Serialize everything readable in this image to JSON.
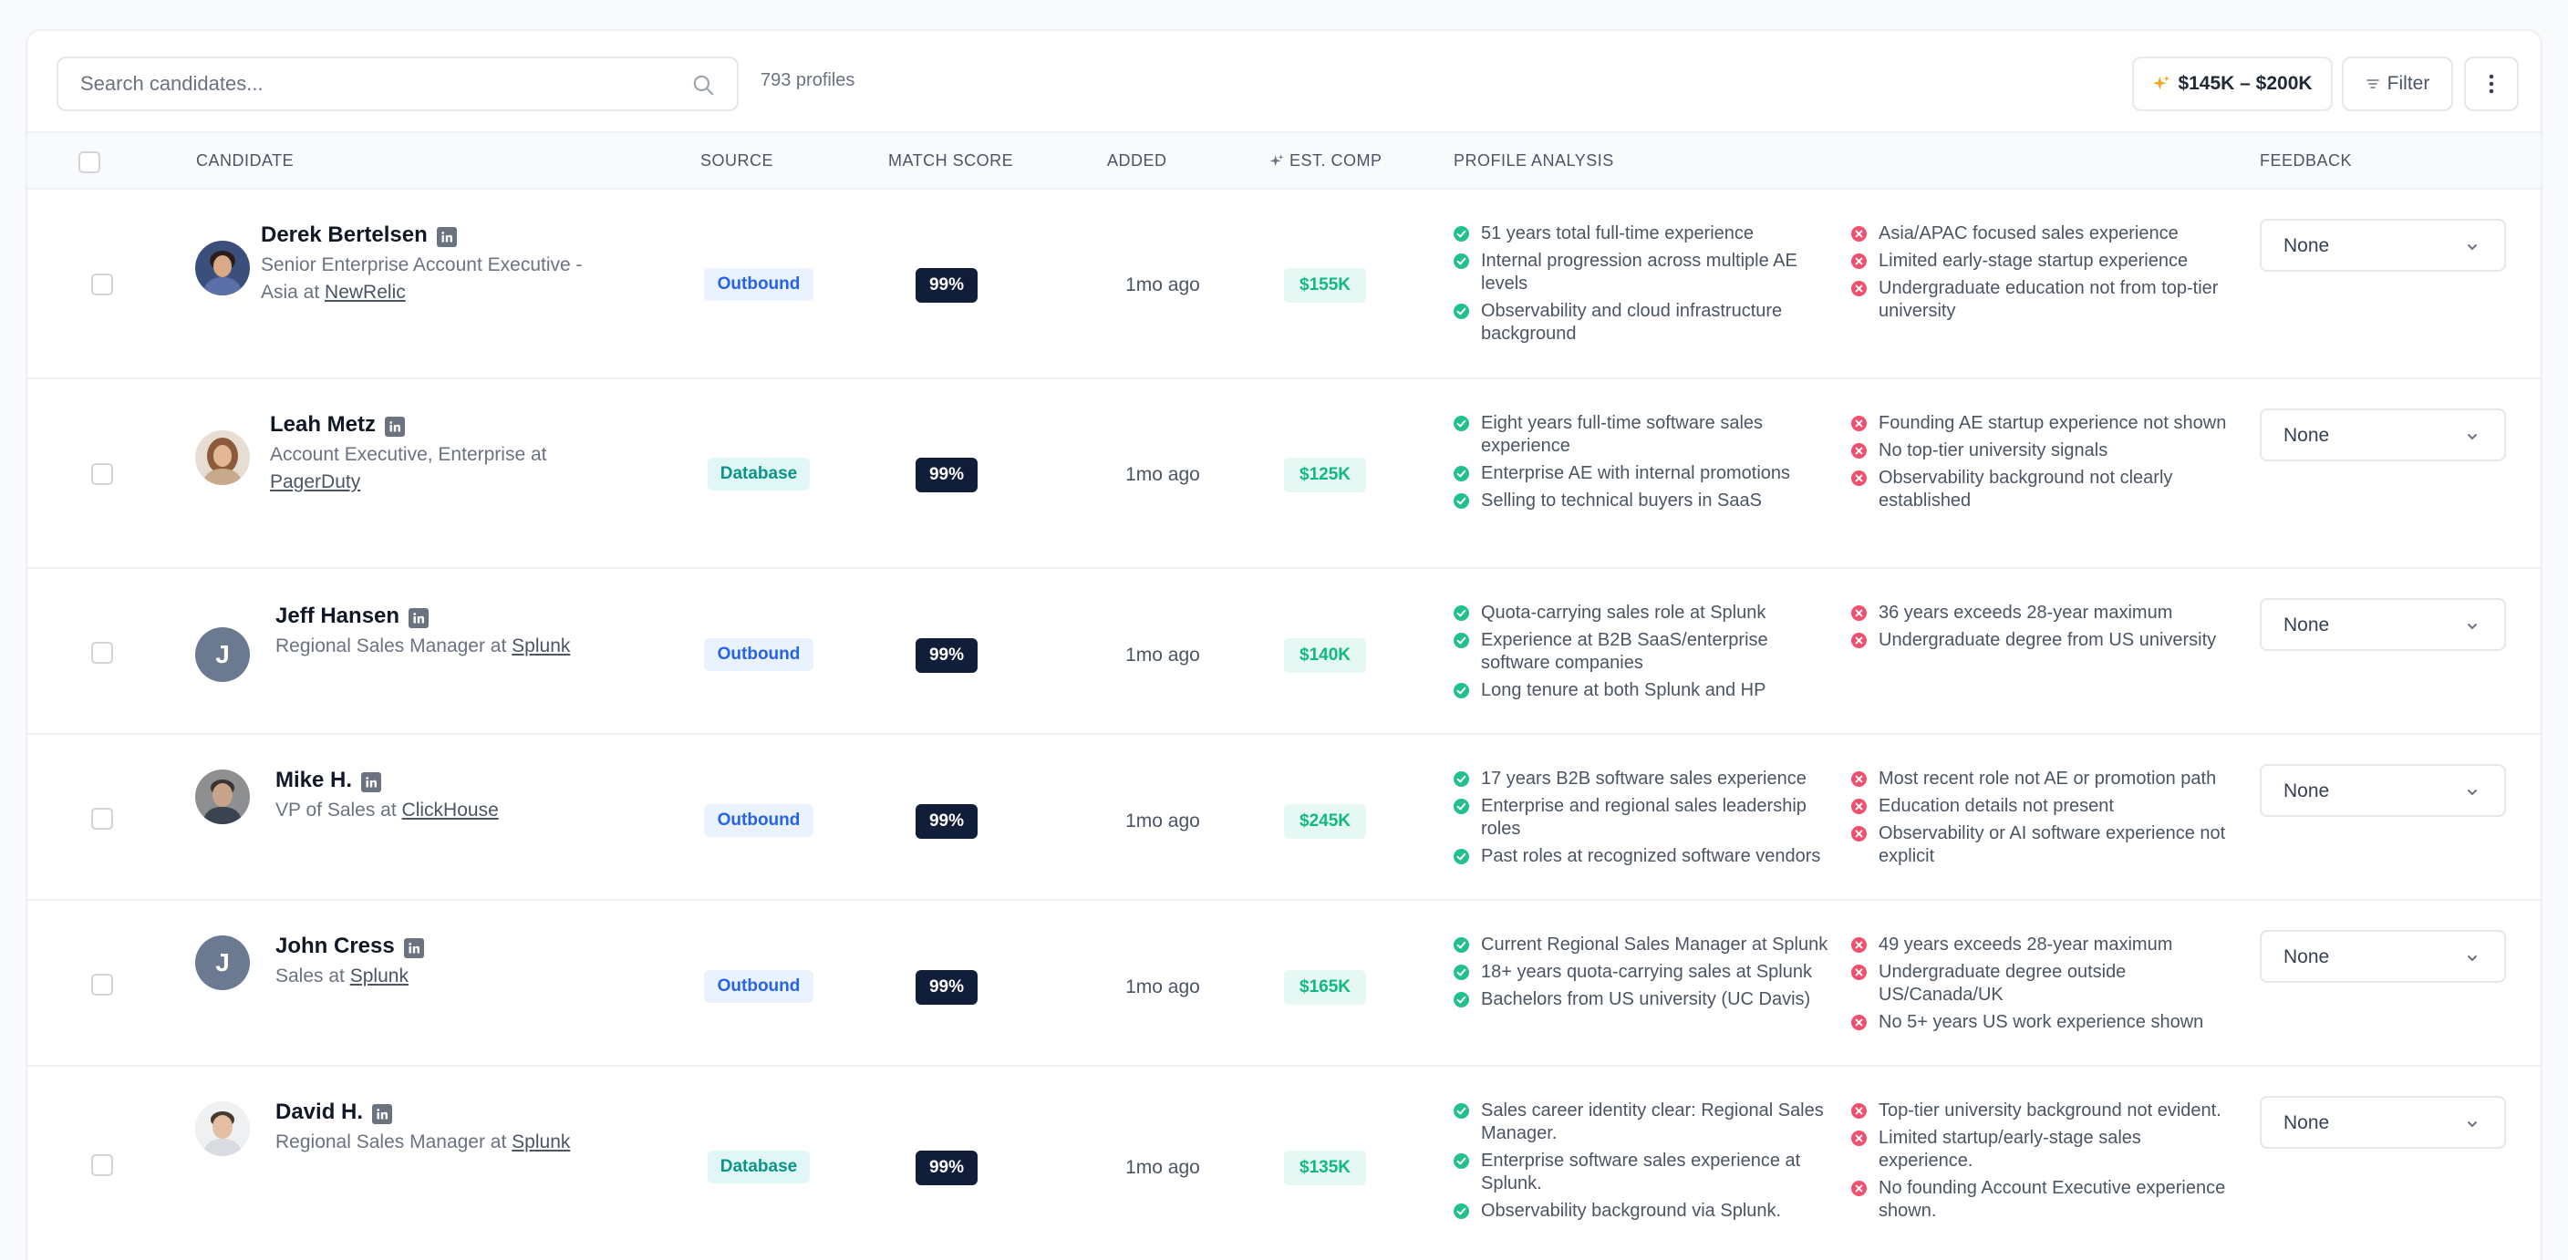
{
  "toolbar": {
    "search_placeholder": "Search candidates...",
    "profile_count": "793 profiles",
    "comp_range": "$145K – $200K",
    "filter_label": "Filter"
  },
  "columns": {
    "candidate": "CANDIDATE",
    "source": "SOURCE",
    "match_score": "MATCH SCORE",
    "added": "ADDED",
    "est_comp": "EST. COMP",
    "profile_analysis": "PROFILE ANALYSIS",
    "feedback": "FEEDBACK"
  },
  "colors": {
    "outbound": "#2563eb",
    "database": "#0d9488",
    "score_bg": "#111e3a",
    "comp": "#10b981",
    "positive": "#22c08b",
    "negative": "#f0506e"
  },
  "rows": [
    {
      "name": "Derek Bertelsen",
      "title_line1": "Senior Enterprise Account Executive -",
      "title_line2": "Asia at",
      "company": "NewRelic",
      "avatar": "photo",
      "source": "Outbound",
      "score": "99%",
      "added": "1mo ago",
      "comp": "$155K",
      "positives": [
        "51 years total full-time experience",
        "Internal progression across multiple AE levels",
        "Observability and cloud infrastructure background"
      ],
      "negatives": [
        "Asia/APAC focused sales experience",
        "Limited early-stage startup experience",
        "Undergraduate education not from top-tier university"
      ],
      "feedback": "None"
    },
    {
      "name": "Leah Metz",
      "title_line1": "Account Executive, Enterprise at",
      "title_line2": "",
      "company": "PagerDuty",
      "avatar": "photo",
      "source": "Database",
      "score": "99%",
      "added": "1mo ago",
      "comp": "$125K",
      "positives": [
        "Eight years full-time software sales experience",
        "Enterprise AE with internal promotions",
        "Selling to technical buyers in SaaS"
      ],
      "negatives": [
        "Founding AE startup experience not shown",
        "No top-tier university signals",
        "Observability background not clearly established"
      ],
      "feedback": "None"
    },
    {
      "name": "Jeff Hansen",
      "title_line1": "Regional Sales Manager at",
      "title_line2": "",
      "company": "Splunk",
      "avatar": "J",
      "source": "Outbound",
      "score": "99%",
      "added": "1mo ago",
      "comp": "$140K",
      "positives": [
        "Quota-carrying sales role at Splunk",
        "Experience at B2B SaaS/enterprise software companies",
        "Long tenure at both Splunk and HP"
      ],
      "negatives": [
        "36 years exceeds 28-year maximum",
        "Undergraduate degree from US university"
      ],
      "feedback": "None"
    },
    {
      "name": "Mike H.",
      "title_line1": "VP of Sales at",
      "title_line2": "",
      "company": "ClickHouse",
      "avatar": "photo",
      "source": "Outbound",
      "score": "99%",
      "added": "1mo ago",
      "comp": "$245K",
      "positives": [
        "17 years B2B software sales experience",
        "Enterprise and regional sales leadership roles",
        "Past roles at recognized software vendors"
      ],
      "negatives": [
        "Most recent role not AE or promotion path",
        "Education details not present",
        "Observability or AI software experience not explicit"
      ],
      "feedback": "None"
    },
    {
      "name": "John Cress",
      "title_line1": "Sales at",
      "title_line2": "",
      "company": "Splunk",
      "avatar": "J",
      "source": "Outbound",
      "score": "99%",
      "added": "1mo ago",
      "comp": "$165K",
      "positives": [
        "Current Regional Sales Manager at Splunk",
        "18+ years quota-carrying sales at Splunk",
        "Bachelors from US university (UC Davis)"
      ],
      "negatives": [
        "49 years exceeds 28-year maximum",
        "Undergraduate degree outside US/Canada/UK",
        "No 5+ years US work experience shown"
      ],
      "feedback": "None"
    },
    {
      "name": "David H.",
      "title_line1": "Regional Sales Manager at",
      "title_line2": "",
      "company": "Splunk",
      "avatar": "photo",
      "source": "Database",
      "score": "99%",
      "added": "1mo ago",
      "comp": "$135K",
      "positives": [
        "Sales career identity clear: Regional Sales Manager.",
        "Enterprise software sales experience at Splunk.",
        "Observability background via Splunk."
      ],
      "negatives": [
        "Top-tier university background not evident.",
        "Limited startup/early-stage sales experience.",
        "No founding Account Executive experience shown."
      ],
      "feedback": "None"
    }
  ]
}
